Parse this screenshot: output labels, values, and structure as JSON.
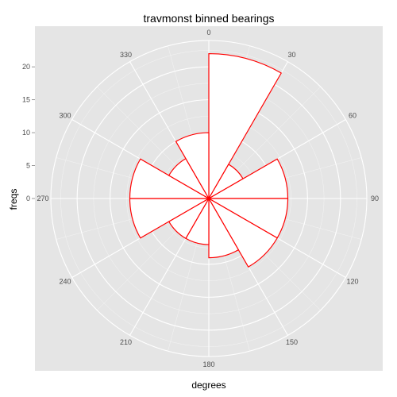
{
  "chart_data": {
    "type": "polar-bar",
    "title": "travmonst binned bearings",
    "xlabel": "degrees",
    "ylabel": "freqs",
    "bin_width_degrees": 30,
    "angle_ticks": [
      "0",
      "30",
      "60",
      "90",
      "120",
      "150",
      "180",
      "210",
      "240",
      "270",
      "300",
      "330"
    ],
    "radial_ticks": [
      "0",
      "5",
      "10",
      "15",
      "20"
    ],
    "radial_tick_values": [
      0,
      5,
      10,
      15,
      20
    ],
    "rlim": [
      0,
      24
    ],
    "bins": [
      {
        "start": 0,
        "end": 30,
        "value": 22
      },
      {
        "start": 30,
        "end": 60,
        "value": 6
      },
      {
        "start": 60,
        "end": 90,
        "value": 12
      },
      {
        "start": 90,
        "end": 120,
        "value": 12
      },
      {
        "start": 120,
        "end": 150,
        "value": 12
      },
      {
        "start": 150,
        "end": 180,
        "value": 9
      },
      {
        "start": 180,
        "end": 210,
        "value": 7
      },
      {
        "start": 210,
        "end": 240,
        "value": 7
      },
      {
        "start": 240,
        "end": 270,
        "value": 12
      },
      {
        "start": 270,
        "end": 300,
        "value": 12
      },
      {
        "start": 300,
        "end": 330,
        "value": 7
      },
      {
        "start": 330,
        "end": 360,
        "value": 10
      }
    ],
    "colors": {
      "bar_fill": "#ffffff",
      "bar_outline": "#ff0000",
      "panel_background": "#e5e5e5",
      "grid": "#ffffff"
    },
    "grid": true,
    "legend": "none"
  }
}
